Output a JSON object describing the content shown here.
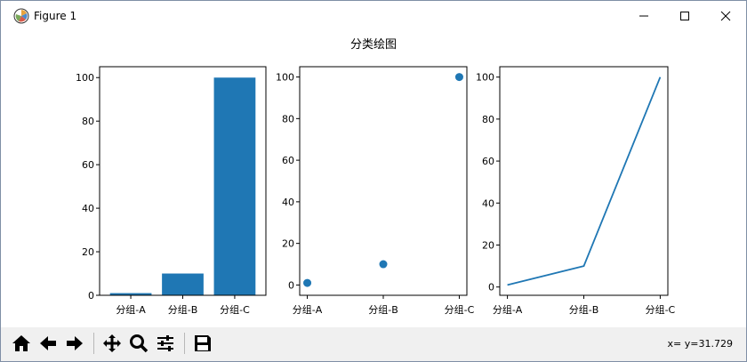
{
  "window": {
    "title": "Figure 1",
    "controls": [
      "minimize",
      "maximize",
      "close"
    ]
  },
  "figure": {
    "suptitle": "分类绘图"
  },
  "chart_data": [
    {
      "type": "bar",
      "categories": [
        "分组-A",
        "分组-B",
        "分组-C"
      ],
      "values": [
        1,
        10,
        100
      ],
      "ylim": [
        0,
        105
      ],
      "yticks": [
        0,
        20,
        40,
        60,
        80,
        100
      ],
      "color": "#1f77b4"
    },
    {
      "type": "scatter",
      "categories": [
        "分组-A",
        "分组-B",
        "分组-C"
      ],
      "values": [
        1,
        10,
        100
      ],
      "ylim": [
        -4.95,
        104.95
      ],
      "yticks": [
        0,
        20,
        40,
        60,
        80,
        100
      ],
      "color": "#1f77b4"
    },
    {
      "type": "line",
      "categories": [
        "分组-A",
        "分组-B",
        "分组-C"
      ],
      "values": [
        1,
        10,
        100
      ],
      "ylim": [
        -3.95,
        104.95
      ],
      "yticks": [
        0,
        20,
        40,
        60,
        80,
        100
      ],
      "color": "#1f77b4"
    }
  ],
  "toolbar": {
    "buttons": [
      {
        "name": "home-icon"
      },
      {
        "name": "back-icon"
      },
      {
        "name": "forward-icon"
      },
      {
        "name": "pan-icon"
      },
      {
        "name": "zoom-icon"
      },
      {
        "name": "configure-subplots-icon"
      },
      {
        "name": "save-icon"
      }
    ],
    "coords_text": "x= y=31.729"
  }
}
